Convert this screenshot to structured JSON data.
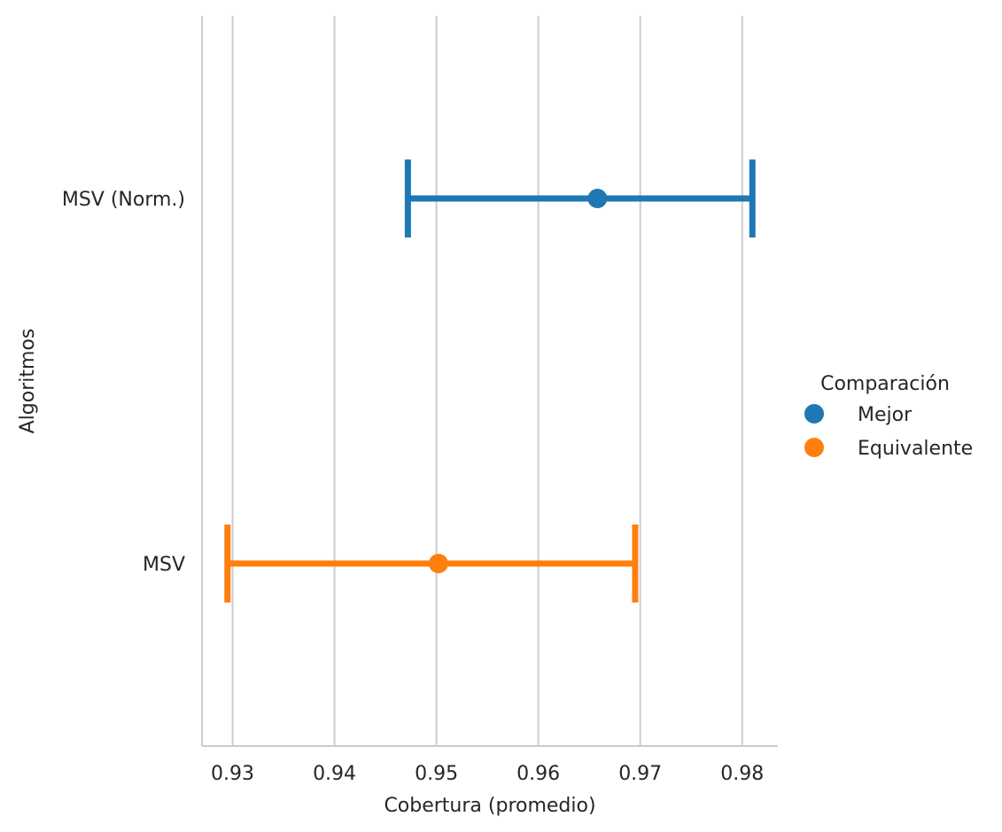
{
  "chart_data": {
    "type": "scatter",
    "xlabel": "Cobertura (promedio)",
    "ylabel": "Algoritmos",
    "xlim": [
      0.927,
      0.9835
    ],
    "xticks": [
      "0.93",
      "0.94",
      "0.95",
      "0.96",
      "0.97",
      "0.98"
    ],
    "xtick_values": [
      0.93,
      0.94,
      0.95,
      0.96,
      0.97,
      0.98
    ],
    "categories": [
      "MSV (Norm.)",
      "MSV"
    ],
    "grid": "vertical",
    "legend": {
      "title": "Comparación",
      "placement": "right",
      "entries": [
        {
          "label": "Mejor",
          "color": "#1f77b4"
        },
        {
          "label": "Equivalente",
          "color": "#ff7f0e"
        }
      ]
    },
    "points": [
      {
        "category": "MSV (Norm.)",
        "group": "Mejor",
        "x": 0.9658,
        "ci_low": 0.9472,
        "ci_high": 0.981,
        "color": "#1f77b4"
      },
      {
        "category": "MSV",
        "group": "Equivalente",
        "x": 0.9502,
        "ci_low": 0.9295,
        "ci_high": 0.9695,
        "color": "#ff7f0e"
      }
    ]
  }
}
